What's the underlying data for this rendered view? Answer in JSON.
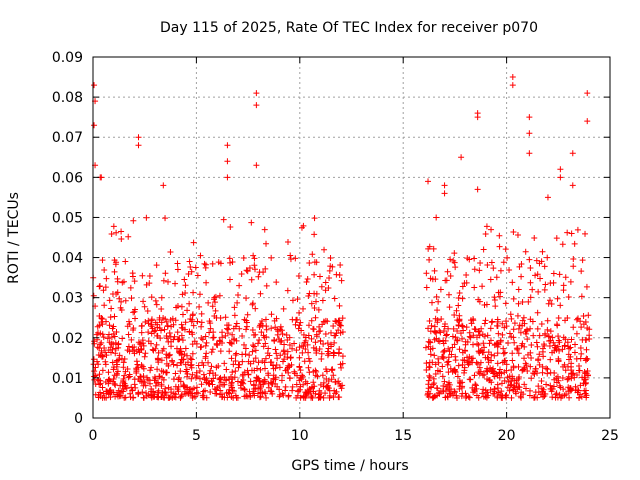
{
  "chart_data": {
    "type": "scatter",
    "title": "Day 115 of 2025, Rate Of TEC Index for receiver p070",
    "xlabel": "GPS time / hours",
    "ylabel": "ROTI / TECUs",
    "xlim": [
      0,
      25
    ],
    "ylim": [
      0,
      0.09
    ],
    "xticks": [
      0,
      5,
      10,
      15,
      20,
      25
    ],
    "xtick_labels": [
      "0",
      "5",
      "10",
      "15",
      "20",
      "25"
    ],
    "yticks": [
      0,
      0.01,
      0.02,
      0.03,
      0.04,
      0.05,
      0.06,
      0.07,
      0.08,
      0.09
    ],
    "ytick_labels": [
      "0",
      "0.01",
      "0.02",
      "0.03",
      "0.04",
      "0.05",
      "0.06",
      "0.07",
      "0.08",
      "0.09"
    ],
    "grid": true,
    "marker": "+",
    "color": "#ff0000",
    "series": [
      {
        "name": "ROTI",
        "segments": [
          {
            "x_start": 0.0,
            "x_end": 12.1,
            "typical_low": 0.005,
            "typical_high": 0.025,
            "peak": 0.05
          },
          {
            "x_start": 16.1,
            "x_end": 24.0,
            "typical_low": 0.005,
            "typical_high": 0.025,
            "peak": 0.05
          }
        ],
        "notable_points": [
          {
            "x": 0.05,
            "y": 0.083
          },
          {
            "x": 0.1,
            "y": 0.079
          },
          {
            "x": 0.05,
            "y": 0.073
          },
          {
            "x": 0.1,
            "y": 0.063
          },
          {
            "x": 0.35,
            "y": 0.06
          },
          {
            "x": 0.4,
            "y": 0.06
          },
          {
            "x": 2.2,
            "y": 0.07
          },
          {
            "x": 2.2,
            "y": 0.068
          },
          {
            "x": 3.4,
            "y": 0.058
          },
          {
            "x": 6.5,
            "y": 0.068
          },
          {
            "x": 6.5,
            "y": 0.064
          },
          {
            "x": 6.5,
            "y": 0.06
          },
          {
            "x": 7.9,
            "y": 0.081
          },
          {
            "x": 7.9,
            "y": 0.078
          },
          {
            "x": 7.9,
            "y": 0.063
          },
          {
            "x": 16.2,
            "y": 0.059
          },
          {
            "x": 17.0,
            "y": 0.058
          },
          {
            "x": 17.0,
            "y": 0.056
          },
          {
            "x": 17.8,
            "y": 0.065
          },
          {
            "x": 18.6,
            "y": 0.076
          },
          {
            "x": 18.6,
            "y": 0.075
          },
          {
            "x": 18.6,
            "y": 0.057
          },
          {
            "x": 20.3,
            "y": 0.085
          },
          {
            "x": 20.3,
            "y": 0.083
          },
          {
            "x": 21.1,
            "y": 0.075
          },
          {
            "x": 21.1,
            "y": 0.071
          },
          {
            "x": 21.1,
            "y": 0.066
          },
          {
            "x": 22.6,
            "y": 0.062
          },
          {
            "x": 22.6,
            "y": 0.06
          },
          {
            "x": 23.9,
            "y": 0.081
          },
          {
            "x": 23.9,
            "y": 0.074
          },
          {
            "x": 22.0,
            "y": 0.055
          },
          {
            "x": 23.2,
            "y": 0.066
          },
          {
            "x": 23.2,
            "y": 0.058
          }
        ]
      }
    ]
  }
}
